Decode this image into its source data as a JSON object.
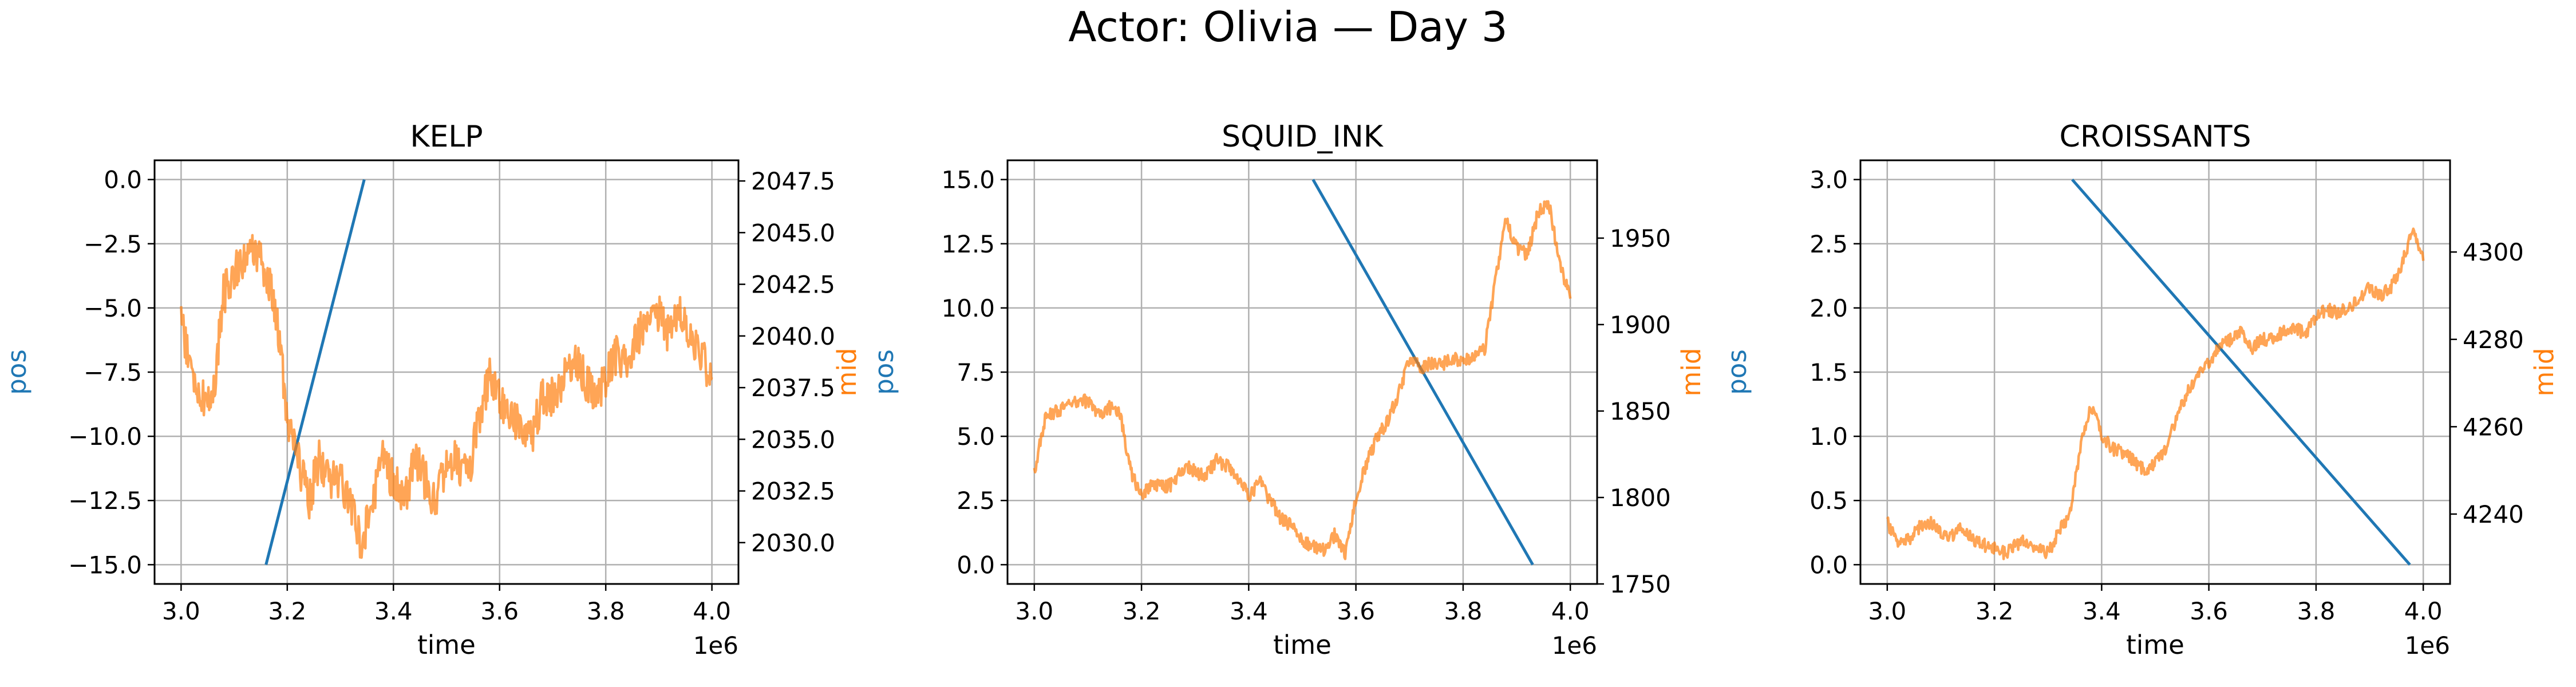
{
  "figure": {
    "title": "Actor: Olivia — Day 3"
  },
  "colors": {
    "pos": "#1f77b4",
    "mid": "#ff7f0e",
    "grid": "#b0b0b0"
  },
  "chart_data": [
    {
      "type": "line",
      "title": "KELP",
      "xlabel": "time",
      "ylabel": "pos",
      "y2label": "mid",
      "x_offset_label": "1e6",
      "xlim": [
        2.95,
        4.05
      ],
      "xticks": [
        3.0,
        3.2,
        3.4,
        3.6,
        3.8,
        4.0
      ],
      "xtick_labels": [
        "3.0",
        "3.2",
        "3.4",
        "3.6",
        "3.8",
        "4.0"
      ],
      "ylim": [
        -15.75,
        0.75
      ],
      "yticks": [
        0.0,
        -2.5,
        -5.0,
        -7.5,
        -10.0,
        -12.5,
        -15.0
      ],
      "ytick_labels": [
        "0.0",
        "−2.5",
        "−5.0",
        "−7.5",
        "−10.0",
        "−12.5",
        "−15.0"
      ],
      "y2lim": [
        2028.0,
        2048.5
      ],
      "y2ticks": [
        2030.0,
        2032.5,
        2035.0,
        2037.5,
        2040.0,
        2042.5,
        2045.0,
        2047.5
      ],
      "y2tick_labels": [
        "2030.0",
        "2032.5",
        "2035.0",
        "2037.5",
        "2040.0",
        "2042.5",
        "2045.0",
        "2047.5"
      ],
      "grid": true,
      "series": [
        {
          "name": "pos",
          "axis": "left",
          "x": [
            3.16,
            3.345
          ],
          "y": [
            -15.0,
            0.0
          ]
        },
        {
          "name": "mid",
          "axis": "right",
          "noise": 1.0,
          "x": [
            3.0,
            3.02,
            3.04,
            3.06,
            3.08,
            3.1,
            3.12,
            3.14,
            3.16,
            3.18,
            3.2,
            3.22,
            3.24,
            3.26,
            3.28,
            3.3,
            3.32,
            3.34,
            3.36,
            3.38,
            3.4,
            3.42,
            3.44,
            3.46,
            3.48,
            3.5,
            3.52,
            3.54,
            3.56,
            3.58,
            3.6,
            3.62,
            3.64,
            3.66,
            3.68,
            3.7,
            3.72,
            3.74,
            3.76,
            3.78,
            3.8,
            3.82,
            3.84,
            3.86,
            3.88,
            3.9,
            3.92,
            3.94,
            3.96,
            3.98,
            4.0
          ],
          "y": [
            2041,
            2038,
            2037,
            2037,
            2042,
            2043,
            2044,
            2044,
            2043,
            2041,
            2036,
            2034,
            2032,
            2034,
            2033,
            2033,
            2032,
            2030,
            2032,
            2034,
            2033,
            2032,
            2034,
            2033,
            2032,
            2034,
            2034,
            2033,
            2036,
            2038,
            2037,
            2036,
            2036,
            2035,
            2037,
            2037,
            2038,
            2039,
            2038,
            2037,
            2038,
            2039,
            2039,
            2040,
            2041,
            2041,
            2040,
            2041,
            2040,
            2039,
            2038
          ]
        }
      ]
    },
    {
      "type": "line",
      "title": "SQUID_INK",
      "xlabel": "time",
      "ylabel": "pos",
      "y2label": "mid",
      "x_offset_label": "1e6",
      "xlim": [
        2.95,
        4.05
      ],
      "xticks": [
        3.0,
        3.2,
        3.4,
        3.6,
        3.8,
        4.0
      ],
      "xtick_labels": [
        "3.0",
        "3.2",
        "3.4",
        "3.6",
        "3.8",
        "4.0"
      ],
      "ylim": [
        -0.75,
        15.75
      ],
      "yticks": [
        0.0,
        2.5,
        5.0,
        7.5,
        10.0,
        12.5,
        15.0
      ],
      "ytick_labels": [
        "0.0",
        "2.5",
        "5.0",
        "7.5",
        "10.0",
        "12.5",
        "15.0"
      ],
      "y2lim": [
        1750,
        1995
      ],
      "y2ticks": [
        1750,
        1800,
        1850,
        1900,
        1950
      ],
      "y2tick_labels": [
        "1750",
        "1800",
        "1850",
        "1900",
        "1950"
      ],
      "grid": true,
      "series": [
        {
          "name": "pos",
          "axis": "left",
          "x": [
            3.52,
            3.93
          ],
          "y": [
            15.0,
            0.0
          ]
        },
        {
          "name": "mid",
          "axis": "right",
          "noise": 4.0,
          "x": [
            3.0,
            3.02,
            3.04,
            3.06,
            3.08,
            3.1,
            3.12,
            3.14,
            3.16,
            3.18,
            3.2,
            3.22,
            3.24,
            3.26,
            3.28,
            3.3,
            3.32,
            3.34,
            3.36,
            3.38,
            3.4,
            3.42,
            3.44,
            3.46,
            3.48,
            3.5,
            3.52,
            3.54,
            3.56,
            3.58,
            3.6,
            3.62,
            3.64,
            3.66,
            3.68,
            3.7,
            3.72,
            3.74,
            3.76,
            3.78,
            3.8,
            3.82,
            3.84,
            3.86,
            3.88,
            3.9,
            3.92,
            3.94,
            3.96,
            3.98,
            4.0
          ],
          "y": [
            1815,
            1845,
            1850,
            1852,
            1855,
            1856,
            1848,
            1852,
            1848,
            1815,
            1800,
            1808,
            1806,
            1808,
            1818,
            1815,
            1812,
            1822,
            1818,
            1812,
            1800,
            1810,
            1798,
            1788,
            1784,
            1775,
            1772,
            1770,
            1778,
            1768,
            1800,
            1820,
            1835,
            1845,
            1860,
            1880,
            1875,
            1878,
            1877,
            1880,
            1879,
            1882,
            1885,
            1925,
            1960,
            1945,
            1940,
            1965,
            1970,
            1935,
            1915
          ]
        }
      ]
    },
    {
      "type": "line",
      "title": "CROISSANTS",
      "xlabel": "time",
      "ylabel": "pos",
      "y2label": "mid",
      "x_offset_label": "1e6",
      "xlim": [
        2.95,
        4.05
      ],
      "xticks": [
        3.0,
        3.2,
        3.4,
        3.6,
        3.8,
        4.0
      ],
      "xtick_labels": [
        "3.0",
        "3.2",
        "3.4",
        "3.6",
        "3.8",
        "4.0"
      ],
      "ylim": [
        -0.15,
        3.15
      ],
      "yticks": [
        0.0,
        0.5,
        1.0,
        1.5,
        2.0,
        2.5,
        3.0
      ],
      "ytick_labels": [
        "0.0",
        "0.5",
        "1.0",
        "1.5",
        "2.0",
        "2.5",
        "3.0"
      ],
      "y2lim": [
        4224,
        4321
      ],
      "y2ticks": [
        4240,
        4260,
        4280,
        4300
      ],
      "y2tick_labels": [
        "4240",
        "4260",
        "4280",
        "4300"
      ],
      "grid": true,
      "series": [
        {
          "name": "pos",
          "axis": "left",
          "x": [
            3.345,
            3.975
          ],
          "y": [
            3.0,
            0.0
          ]
        },
        {
          "name": "mid",
          "axis": "right",
          "noise": 1.5,
          "x": [
            3.0,
            3.02,
            3.04,
            3.06,
            3.08,
            3.1,
            3.12,
            3.14,
            3.16,
            3.18,
            3.2,
            3.22,
            3.24,
            3.26,
            3.28,
            3.3,
            3.32,
            3.34,
            3.36,
            3.38,
            3.4,
            3.42,
            3.44,
            3.46,
            3.48,
            3.5,
            3.52,
            3.54,
            3.56,
            3.58,
            3.6,
            3.62,
            3.64,
            3.66,
            3.68,
            3.7,
            3.72,
            3.74,
            3.76,
            3.78,
            3.8,
            3.82,
            3.84,
            3.86,
            3.88,
            3.9,
            3.92,
            3.94,
            3.96,
            3.98,
            4.0
          ],
          "y": [
            4238,
            4234,
            4234,
            4237,
            4238,
            4236,
            4235,
            4237,
            4234,
            4233,
            4232,
            4231,
            4233,
            4234,
            4232,
            4231,
            4236,
            4240,
            4255,
            4265,
            4258,
            4255,
            4254,
            4252,
            4250,
            4252,
            4255,
            4262,
            4268,
            4272,
            4275,
            4278,
            4280,
            4282,
            4278,
            4280,
            4280,
            4282,
            4283,
            4281,
            4285,
            4287,
            4286,
            4287,
            4289,
            4292,
            4290,
            4292,
            4297,
            4305,
            4298
          ]
        }
      ]
    }
  ]
}
